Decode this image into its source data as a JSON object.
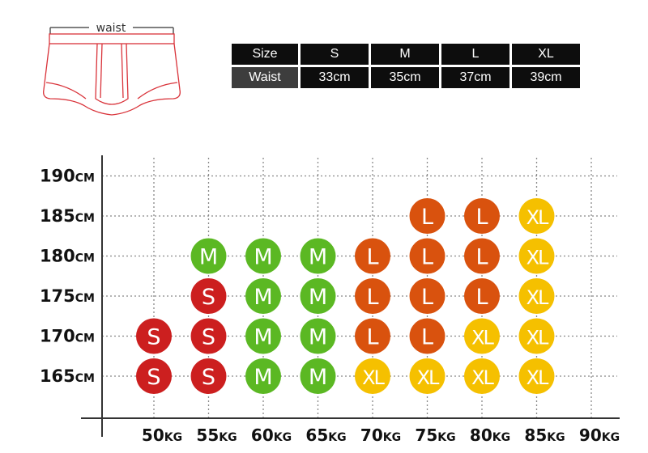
{
  "illustration": {
    "label": "waist"
  },
  "size_table": {
    "header": [
      "Size",
      "S",
      "M",
      "L",
      "XL"
    ],
    "rows": [
      [
        "Waist",
        "33cm",
        "35cm",
        "37cm",
        "39cm"
      ]
    ]
  },
  "chart_data": {
    "type": "scatter",
    "y": [
      {
        "value": 190,
        "label": "190",
        "unit": "CM"
      },
      {
        "value": 185,
        "label": "185",
        "unit": "CM"
      },
      {
        "value": 180,
        "label": "180",
        "unit": "CM"
      },
      {
        "value": 175,
        "label": "175",
        "unit": "CM"
      },
      {
        "value": 170,
        "label": "170",
        "unit": "CM"
      },
      {
        "value": 165,
        "label": "165",
        "unit": "CM"
      }
    ],
    "x": [
      {
        "value": 50,
        "label": "50",
        "unit": "KG"
      },
      {
        "value": 55,
        "label": "55",
        "unit": "KG"
      },
      {
        "value": 60,
        "label": "60",
        "unit": "KG"
      },
      {
        "value": 65,
        "label": "65",
        "unit": "KG"
      },
      {
        "value": 70,
        "label": "70",
        "unit": "KG"
      },
      {
        "value": 75,
        "label": "75",
        "unit": "KG"
      },
      {
        "value": 80,
        "label": "80",
        "unit": "KG"
      },
      {
        "value": 85,
        "label": "85",
        "unit": "KG"
      },
      {
        "value": 90,
        "label": "90",
        "unit": "KG"
      }
    ],
    "size_colors": {
      "S": "#cc1f1f",
      "M": "#5bb823",
      "L": "#d9520e",
      "XL": "#f5c000"
    },
    "points": [
      {
        "weight": 75,
        "height": 185,
        "size": "L"
      },
      {
        "weight": 80,
        "height": 185,
        "size": "L"
      },
      {
        "weight": 85,
        "height": 185,
        "size": "XL"
      },
      {
        "weight": 55,
        "height": 180,
        "size": "M"
      },
      {
        "weight": 60,
        "height": 180,
        "size": "M"
      },
      {
        "weight": 65,
        "height": 180,
        "size": "M"
      },
      {
        "weight": 70,
        "height": 180,
        "size": "L"
      },
      {
        "weight": 75,
        "height": 180,
        "size": "L"
      },
      {
        "weight": 80,
        "height": 180,
        "size": "L"
      },
      {
        "weight": 85,
        "height": 180,
        "size": "XL"
      },
      {
        "weight": 55,
        "height": 175,
        "size": "S"
      },
      {
        "weight": 60,
        "height": 175,
        "size": "M"
      },
      {
        "weight": 65,
        "height": 175,
        "size": "M"
      },
      {
        "weight": 70,
        "height": 175,
        "size": "L"
      },
      {
        "weight": 75,
        "height": 175,
        "size": "L"
      },
      {
        "weight": 80,
        "height": 175,
        "size": "L"
      },
      {
        "weight": 85,
        "height": 175,
        "size": "XL"
      },
      {
        "weight": 50,
        "height": 170,
        "size": "S"
      },
      {
        "weight": 55,
        "height": 170,
        "size": "S"
      },
      {
        "weight": 60,
        "height": 170,
        "size": "M"
      },
      {
        "weight": 65,
        "height": 170,
        "size": "M"
      },
      {
        "weight": 70,
        "height": 170,
        "size": "L"
      },
      {
        "weight": 75,
        "height": 170,
        "size": "L"
      },
      {
        "weight": 80,
        "height": 170,
        "size": "XL"
      },
      {
        "weight": 85,
        "height": 170,
        "size": "XL"
      },
      {
        "weight": 50,
        "height": 165,
        "size": "S"
      },
      {
        "weight": 55,
        "height": 165,
        "size": "S"
      },
      {
        "weight": 60,
        "height": 165,
        "size": "M"
      },
      {
        "weight": 65,
        "height": 165,
        "size": "M"
      },
      {
        "weight": 70,
        "height": 165,
        "size": "XL"
      },
      {
        "weight": 75,
        "height": 165,
        "size": "XL"
      },
      {
        "weight": 80,
        "height": 165,
        "size": "XL"
      },
      {
        "weight": 85,
        "height": 165,
        "size": "XL"
      }
    ]
  }
}
